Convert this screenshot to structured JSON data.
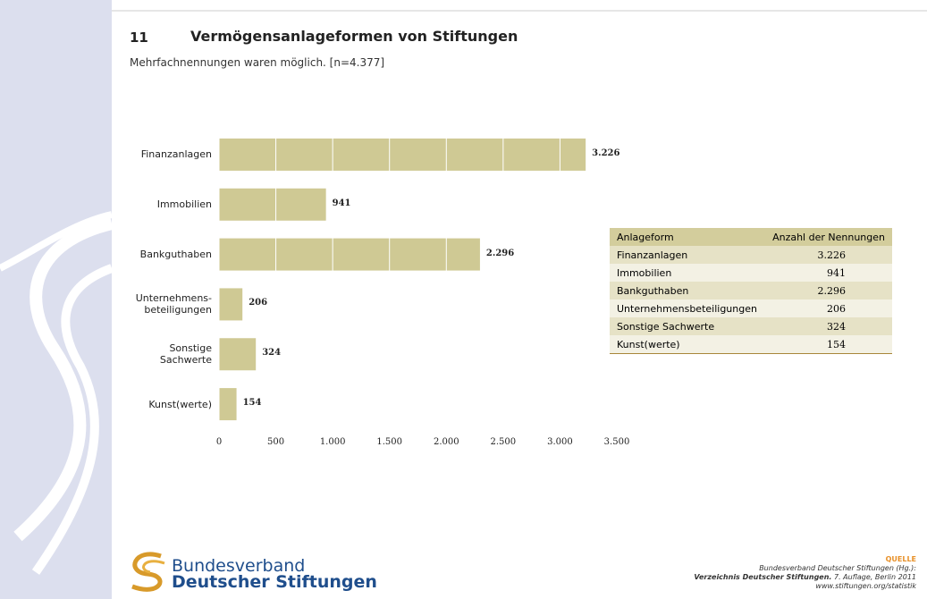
{
  "chart_data": {
    "type": "bar",
    "orientation": "horizontal",
    "number": "11",
    "title": "Vermögensanlageformen von Stiftungen",
    "subtitle": "Mehrfachnennungen waren möglich. [n=4.377]",
    "categories": [
      "Finanzanlagen",
      "Immobilien",
      "Bankguthaben",
      "Unternehmens-\nbeteiligungen",
      "Sonstige\nSachwerte",
      "Kunst(werte)"
    ],
    "values": [
      3226,
      941,
      2296,
      206,
      324,
      154
    ],
    "value_labels": [
      "3.226",
      "941",
      "2.296",
      "206",
      "324",
      "154"
    ],
    "color": "#cfc994",
    "grid": true,
    "xlim": [
      0,
      3500
    ],
    "xticks": [
      0,
      500,
      {
        "value": 1000,
        "label": "1.000"
      },
      {
        "value": 1500,
        "label": "1.500"
      },
      {
        "value": 2000,
        "label": "2.000"
      },
      {
        "value": 2500,
        "label": "2.500"
      },
      {
        "value": 3000,
        "label": "3.000"
      },
      {
        "value": 3500,
        "label": "3.500"
      }
    ]
  },
  "table": {
    "columns": [
      "Anlageform",
      "Anzahl der Nennungen"
    ],
    "rows": [
      [
        "Finanzanlagen",
        "3.226"
      ],
      [
        "Immobilien",
        "941"
      ],
      [
        "Bankguthaben",
        "2.296"
      ],
      [
        "Unternehmensbeteiligungen",
        "206"
      ],
      [
        "Sonstige Sachwerte",
        "324"
      ],
      [
        "Kunst(werte)",
        "154"
      ]
    ]
  },
  "logo": {
    "line1": "Bundesverband",
    "line2": "Deutscher Stiftungen"
  },
  "source": {
    "label": "QUELLE",
    "line1": "Bundesverband Deutscher Stiftungen (Hg.):",
    "line2_bold": "Verzeichnis Deutscher Stiftungen.",
    "line2_rest": "7. Auflage, Berlin 2011",
    "line3": "www.stiftungen.org/statistik"
  }
}
